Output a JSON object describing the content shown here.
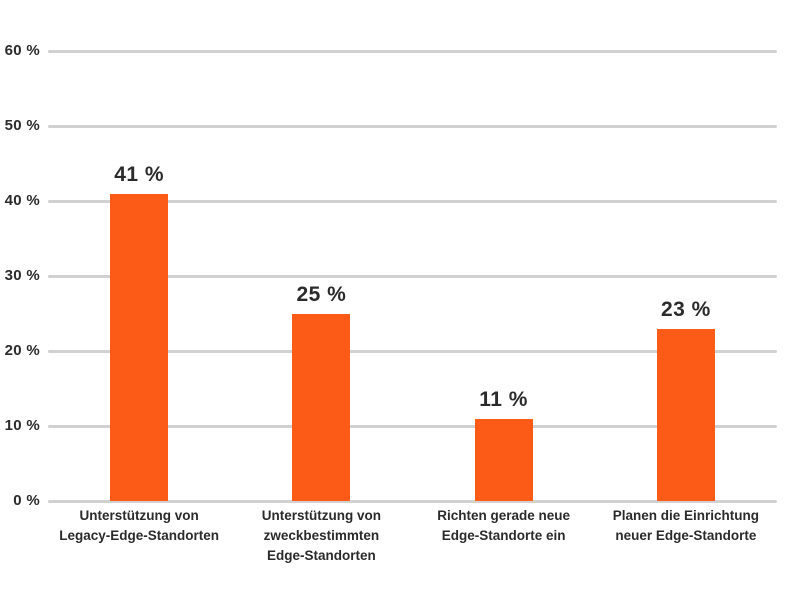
{
  "page": {
    "background": "#ffffff",
    "title": ""
  },
  "chart_data": {
    "type": "bar",
    "title": "",
    "subtitle": "",
    "xlabel": "",
    "ylabel": "",
    "legend": "none",
    "grid": true,
    "categories": [
      "Unterstützung von\nLegacy-Edge-Standorten",
      "Unterstützung von\nzweckbestimmten\nEdge-Standorten",
      "Richten gerade neue\nEdge-Standorte ein",
      "Planen die Einrichtung\nneuer Edge-Standorte"
    ],
    "values": [
      41,
      25,
      11,
      23
    ],
    "value_labels": [
      "41 %",
      "25 %",
      "11 %",
      "23 %"
    ],
    "y_axis": {
      "range": [
        0,
        60
      ],
      "ticks": [
        0,
        10,
        20,
        30,
        40,
        50,
        60
      ],
      "tick_labels": [
        "0 %",
        "10 %",
        "20 %",
        "30 %",
        "40 %",
        "50 %",
        "60 %"
      ]
    },
    "colors": {
      "bar": "#FB5A17",
      "gridline": "#D1D1D1",
      "text": "#2B2B2B"
    }
  }
}
